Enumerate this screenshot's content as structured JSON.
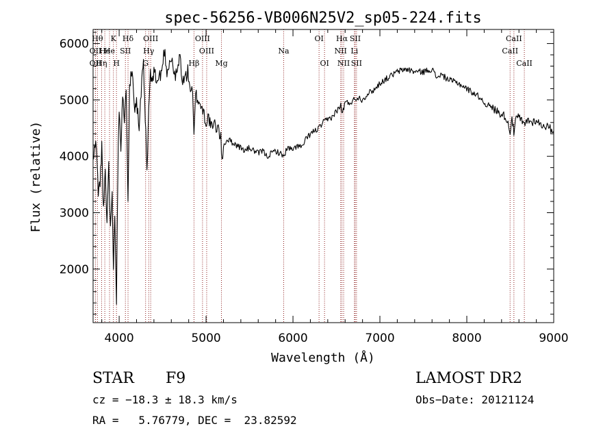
{
  "page": {
    "title": "spec-56256-VB006N25V2_sp05-224.fits"
  },
  "info": {
    "class_label": "STAR",
    "subclass": "F9",
    "survey": "LAMOST DR2",
    "cz": "cz = −18.3 ± 18.3 km/s",
    "obs_date": "Obs−Date: 20121124",
    "coords": "RA =   5.76779, DEC =  23.82592"
  },
  "colors": {
    "spectrum": "#000000",
    "axes": "#000000",
    "line_markers": "#8b1a1a",
    "background": "#ffffff"
  },
  "chart_data": {
    "type": "line",
    "title": "spec-56256-VB006N25V2_sp05-224.fits",
    "xlabel": "Wavelength (Å)",
    "ylabel": "Flux (relative)",
    "xlim": [
      3700,
      9000
    ],
    "ylim": [
      1050,
      6250
    ],
    "x_ticks": [
      4000,
      5000,
      6000,
      7000,
      8000,
      9000
    ],
    "y_ticks": [
      2000,
      3000,
      4000,
      5000,
      6000
    ],
    "grid": false,
    "series": [
      {
        "x": [
          3700,
          3730,
          3760,
          3780,
          3800,
          3820,
          3840,
          3860,
          3880,
          3900,
          3920,
          3934,
          3950,
          3969,
          3990,
          4000,
          4020,
          4040,
          4060,
          4080,
          4102,
          4120,
          4150,
          4180,
          4200,
          4230,
          4260,
          4280,
          4300,
          4320,
          4340,
          4360,
          4380,
          4400,
          4430,
          4460,
          4490,
          4520,
          4550,
          4580,
          4610,
          4640,
          4670,
          4700,
          4730,
          4760,
          4790,
          4820,
          4845,
          4861,
          4880,
          4910,
          4940,
          4970,
          5000,
          5030,
          5060,
          5100,
          5140,
          5170,
          5183,
          5200,
          5250,
          5300,
          5350,
          5400,
          5450,
          5500,
          5550,
          5600,
          5650,
          5700,
          5750,
          5800,
          5850,
          5893,
          5920,
          5950,
          6000,
          6050,
          6100,
          6150,
          6200,
          6250,
          6300,
          6350,
          6400,
          6450,
          6500,
          6550,
          6563,
          6600,
          6650,
          6700,
          6750,
          6800,
          6850,
          6900,
          6950,
          7000,
          7100,
          7200,
          7300,
          7400,
          7500,
          7600,
          7650,
          7700,
          7800,
          7900,
          8000,
          8100,
          8150,
          8200,
          8250,
          8300,
          8350,
          8400,
          8450,
          8498,
          8520,
          8542,
          8560,
          8600,
          8662,
          8700,
          8750,
          8800,
          8850,
          8900,
          8950,
          9000
        ],
        "y": [
          3900,
          4300,
          3400,
          3500,
          4200,
          3000,
          3700,
          2800,
          3900,
          2700,
          3500,
          1900,
          3000,
          1500,
          4300,
          4900,
          4200,
          5100,
          4500,
          5300,
          3300,
          5300,
          5500,
          4900,
          5000,
          4500,
          5300,
          5600,
          4700,
          3700,
          4800,
          5500,
          5200,
          5600,
          5300,
          5400,
          5500,
          5900,
          5500,
          5700,
          5700,
          5400,
          5500,
          5800,
          5300,
          5400,
          5500,
          5200,
          5100,
          4300,
          5100,
          5000,
          4900,
          4800,
          4600,
          4700,
          4500,
          4550,
          4500,
          4300,
          3900,
          4200,
          4300,
          4250,
          4200,
          4150,
          4100,
          4150,
          4100,
          4050,
          4100,
          4000,
          4050,
          4100,
          4050,
          4000,
          4100,
          4150,
          4100,
          4200,
          4150,
          4300,
          4400,
          4450,
          4500,
          4600,
          4650,
          4700,
          4800,
          4900,
          4750,
          4950,
          4950,
          5000,
          5050,
          5000,
          5100,
          5150,
          5200,
          5300,
          5400,
          5500,
          5550,
          5500,
          5500,
          5550,
          5400,
          5450,
          5350,
          5300,
          5200,
          5100,
          5050,
          4950,
          4900,
          4850,
          4800,
          4750,
          4700,
          4450,
          4700,
          4400,
          4650,
          4700,
          4550,
          4650,
          4600,
          4650,
          4550,
          4550,
          4500,
          4450
        ]
      }
    ],
    "lines": [
      {
        "w": 3750,
        "label": "Hθ",
        "row": 0
      },
      {
        "w": 3727,
        "label": "OII",
        "row": 1
      },
      {
        "w": 3727,
        "label": "OII",
        "row": 2
      },
      {
        "w": 3798,
        "label": "Hη",
        "row": 2
      },
      {
        "w": 3835,
        "label": "He",
        "row": 1
      },
      {
        "w": 3889,
        "label": "He",
        "row": 1
      },
      {
        "w": 3934,
        "label": "K",
        "row": 0
      },
      {
        "w": 3969,
        "label": "H",
        "row": 2
      },
      {
        "w": 4072,
        "label": "SII",
        "row": 1
      },
      {
        "w": 4102,
        "label": "Hδ",
        "row": 0
      },
      {
        "w": 4304,
        "label": "G",
        "row": 2
      },
      {
        "w": 4340,
        "label": "Hγ",
        "row": 1
      },
      {
        "w": 4363,
        "label": "OIII",
        "row": 0
      },
      {
        "w": 4861,
        "label": "Hβ",
        "row": 2
      },
      {
        "w": 4959,
        "label": "OIII",
        "row": 0
      },
      {
        "w": 5007,
        "label": "OIII",
        "row": 1
      },
      {
        "w": 5177,
        "label": "Mg",
        "row": 2
      },
      {
        "w": 5893,
        "label": "Na",
        "row": 1
      },
      {
        "w": 6300,
        "label": "OI",
        "row": 0
      },
      {
        "w": 6363,
        "label": "OI",
        "row": 2
      },
      {
        "w": 6548,
        "label": "NII",
        "row": 1
      },
      {
        "w": 6563,
        "label": "Hα",
        "row": 0
      },
      {
        "w": 6583,
        "label": "NII",
        "row": 2
      },
      {
        "w": 6707,
        "label": "Li",
        "row": 1
      },
      {
        "w": 6716,
        "label": "SII",
        "row": 0
      },
      {
        "w": 6731,
        "label": "SII",
        "row": 2
      },
      {
        "w": 8498,
        "label": "CaII",
        "row": 1
      },
      {
        "w": 8542,
        "label": "CaII",
        "row": 0
      },
      {
        "w": 8662,
        "label": "CaII",
        "row": 2
      }
    ]
  }
}
